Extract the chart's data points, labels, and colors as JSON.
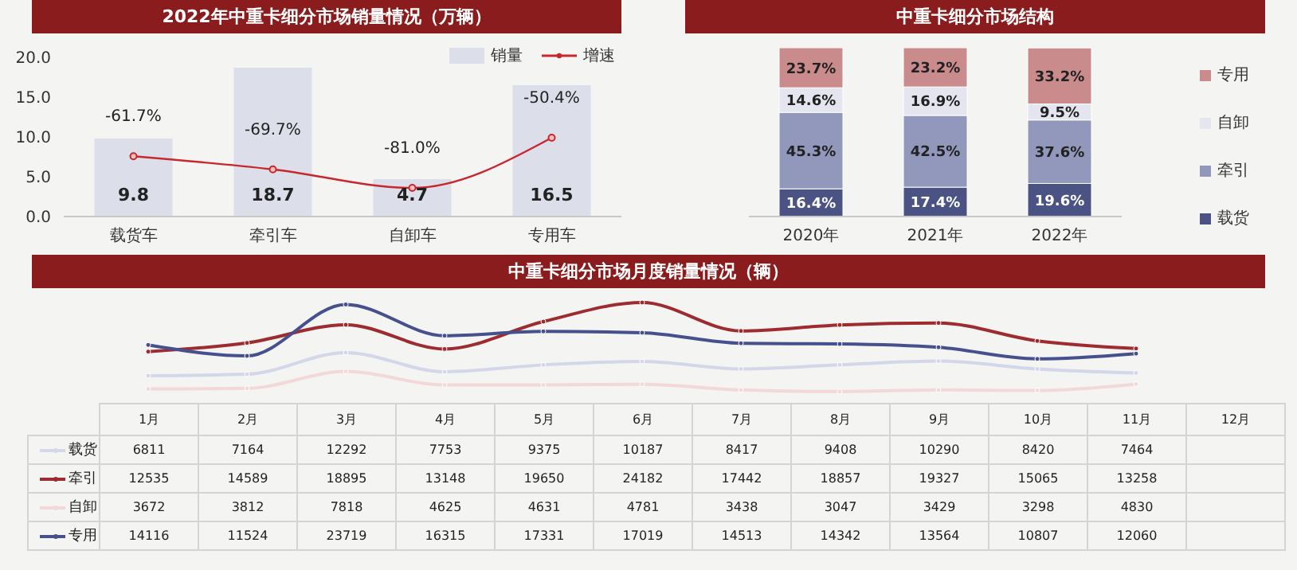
{
  "chart_data": [
    {
      "type": "bar",
      "title": "2022年中重卡细分市场销量情况（万辆）",
      "categories": [
        "载货车",
        "牵引车",
        "自卸车",
        "专用车"
      ],
      "series": [
        {
          "name": "销量",
          "color": "#dcdee9",
          "values": [
            9.8,
            18.7,
            4.7,
            16.5
          ],
          "value_labels": [
            "9.8",
            "18.7",
            "4.7",
            "16.5"
          ]
        },
        {
          "name": "增速",
          "type": "line",
          "axis": "y2",
          "color": "#c8282d",
          "values": [
            -61.7,
            -69.7,
            -81.0,
            -50.4
          ],
          "value_labels": [
            "-61.7%",
            "-69.7%",
            "-81.0%",
            "-50.4%"
          ]
        }
      ],
      "ylim": [
        0,
        20
      ],
      "yticks": [
        {
          "value": 0,
          "label": "0.0"
        },
        {
          "value": 5,
          "label": "5.0"
        },
        {
          "value": 10,
          "label": "10.0"
        },
        {
          "value": 15,
          "label": "15.0"
        },
        {
          "value": 20,
          "label": "20.0"
        }
      ],
      "legend": "top right",
      "marker": "circle"
    },
    {
      "type": "bar",
      "title": "中重卡细分市场结构",
      "categories": [
        "2020年",
        "2021年",
        "2022年"
      ],
      "stacked": true,
      "series": [
        {
          "name": "载货",
          "color": "#4a5384",
          "values": [
            16.4,
            17.4,
            19.6
          ],
          "value_labels": [
            "16.4%",
            "17.4%",
            "19.6%"
          ]
        },
        {
          "name": "牵引",
          "color": "#9298bb",
          "values": [
            45.3,
            42.5,
            37.6
          ],
          "value_labels": [
            "45.3%",
            "42.5%",
            "37.6%"
          ]
        },
        {
          "name": "自卸",
          "color": "#e4e5ef",
          "values": [
            14.6,
            16.9,
            9.5
          ],
          "value_labels": [
            "14.6%",
            "16.9%",
            "9.5%"
          ]
        },
        {
          "name": "专用",
          "color": "#c98b8b",
          "values": [
            23.7,
            23.2,
            33.2
          ],
          "value_labels": [
            "23.7%",
            "23.2%",
            "33.2%"
          ]
        }
      ],
      "legend": "right"
    },
    {
      "type": "line",
      "title": "中重卡细分市场月度销量情况（辆）",
      "categories": [
        "1月",
        "2月",
        "3月",
        "4月",
        "5月",
        "6月",
        "7月",
        "8月",
        "9月",
        "10月",
        "11月",
        "12月"
      ],
      "series": [
        {
          "name": "载货",
          "color": "#d4d6ea",
          "values": [
            6811,
            7164,
            12292,
            7753,
            9375,
            10187,
            8417,
            9408,
            10290,
            8420,
            7464,
            null
          ]
        },
        {
          "name": "牵引",
          "color": "#9e2b2f",
          "values": [
            12535,
            14589,
            18895,
            13148,
            19650,
            24182,
            17442,
            18857,
            19327,
            15065,
            13258,
            null
          ]
        },
        {
          "name": "自卸",
          "color": "#f3d8da",
          "values": [
            3672,
            3812,
            7818,
            4625,
            4631,
            4781,
            3438,
            3047,
            3429,
            3298,
            4830,
            null
          ]
        },
        {
          "name": "专用",
          "color": "#45508c",
          "values": [
            14116,
            11524,
            23719,
            16315,
            17331,
            17019,
            14513,
            14342,
            13564,
            10807,
            12060,
            null
          ]
        }
      ],
      "data_labels": true,
      "legend": "left",
      "marker": "circle"
    }
  ]
}
